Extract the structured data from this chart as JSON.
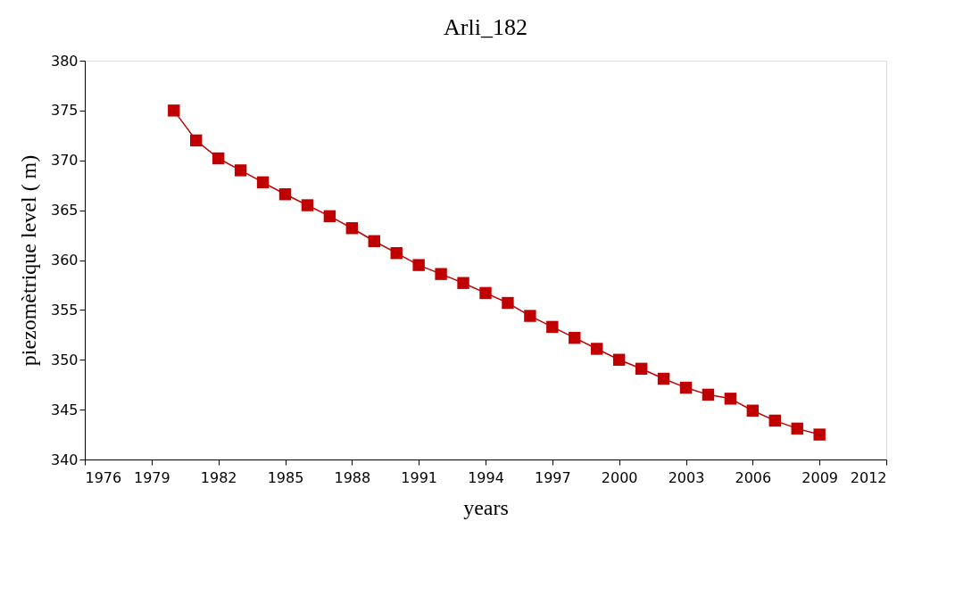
{
  "chart_data": {
    "type": "line",
    "title": "Arli_182",
    "xlabel": "years",
    "ylabel": "piezomètrique level ( m)",
    "x": [
      1980,
      1981,
      1982,
      1983,
      1984,
      1985,
      1986,
      1987,
      1988,
      1989,
      1990,
      1991,
      1992,
      1993,
      1994,
      1995,
      1996,
      1997,
      1998,
      1999,
      2000,
      2001,
      2002,
      2003,
      2004,
      2005,
      2006,
      2007,
      2008,
      2009
    ],
    "series": [
      {
        "color": "#c00000",
        "values": [
          375.0,
          372.0,
          370.2,
          369.0,
          367.8,
          366.6,
          365.5,
          364.4,
          363.2,
          361.9,
          360.7,
          359.5,
          358.6,
          357.7,
          356.7,
          355.7,
          354.4,
          353.3,
          352.2,
          351.1,
          350.0,
          349.1,
          348.1,
          347.2,
          346.5,
          346.1,
          344.9,
          343.9,
          343.1,
          342.5
        ]
      }
    ],
    "xlim": [
      1976,
      2012
    ],
    "xticks": [
      1976,
      1979,
      1982,
      1985,
      1988,
      1991,
      1994,
      1997,
      2000,
      2003,
      2006,
      2009,
      2012
    ],
    "ylim": [
      340,
      380
    ],
    "yticks": [
      340,
      345,
      350,
      355,
      360,
      365,
      370,
      375,
      380
    ],
    "marker": "square",
    "line_style": "solid",
    "grid": false,
    "legend": false
  }
}
